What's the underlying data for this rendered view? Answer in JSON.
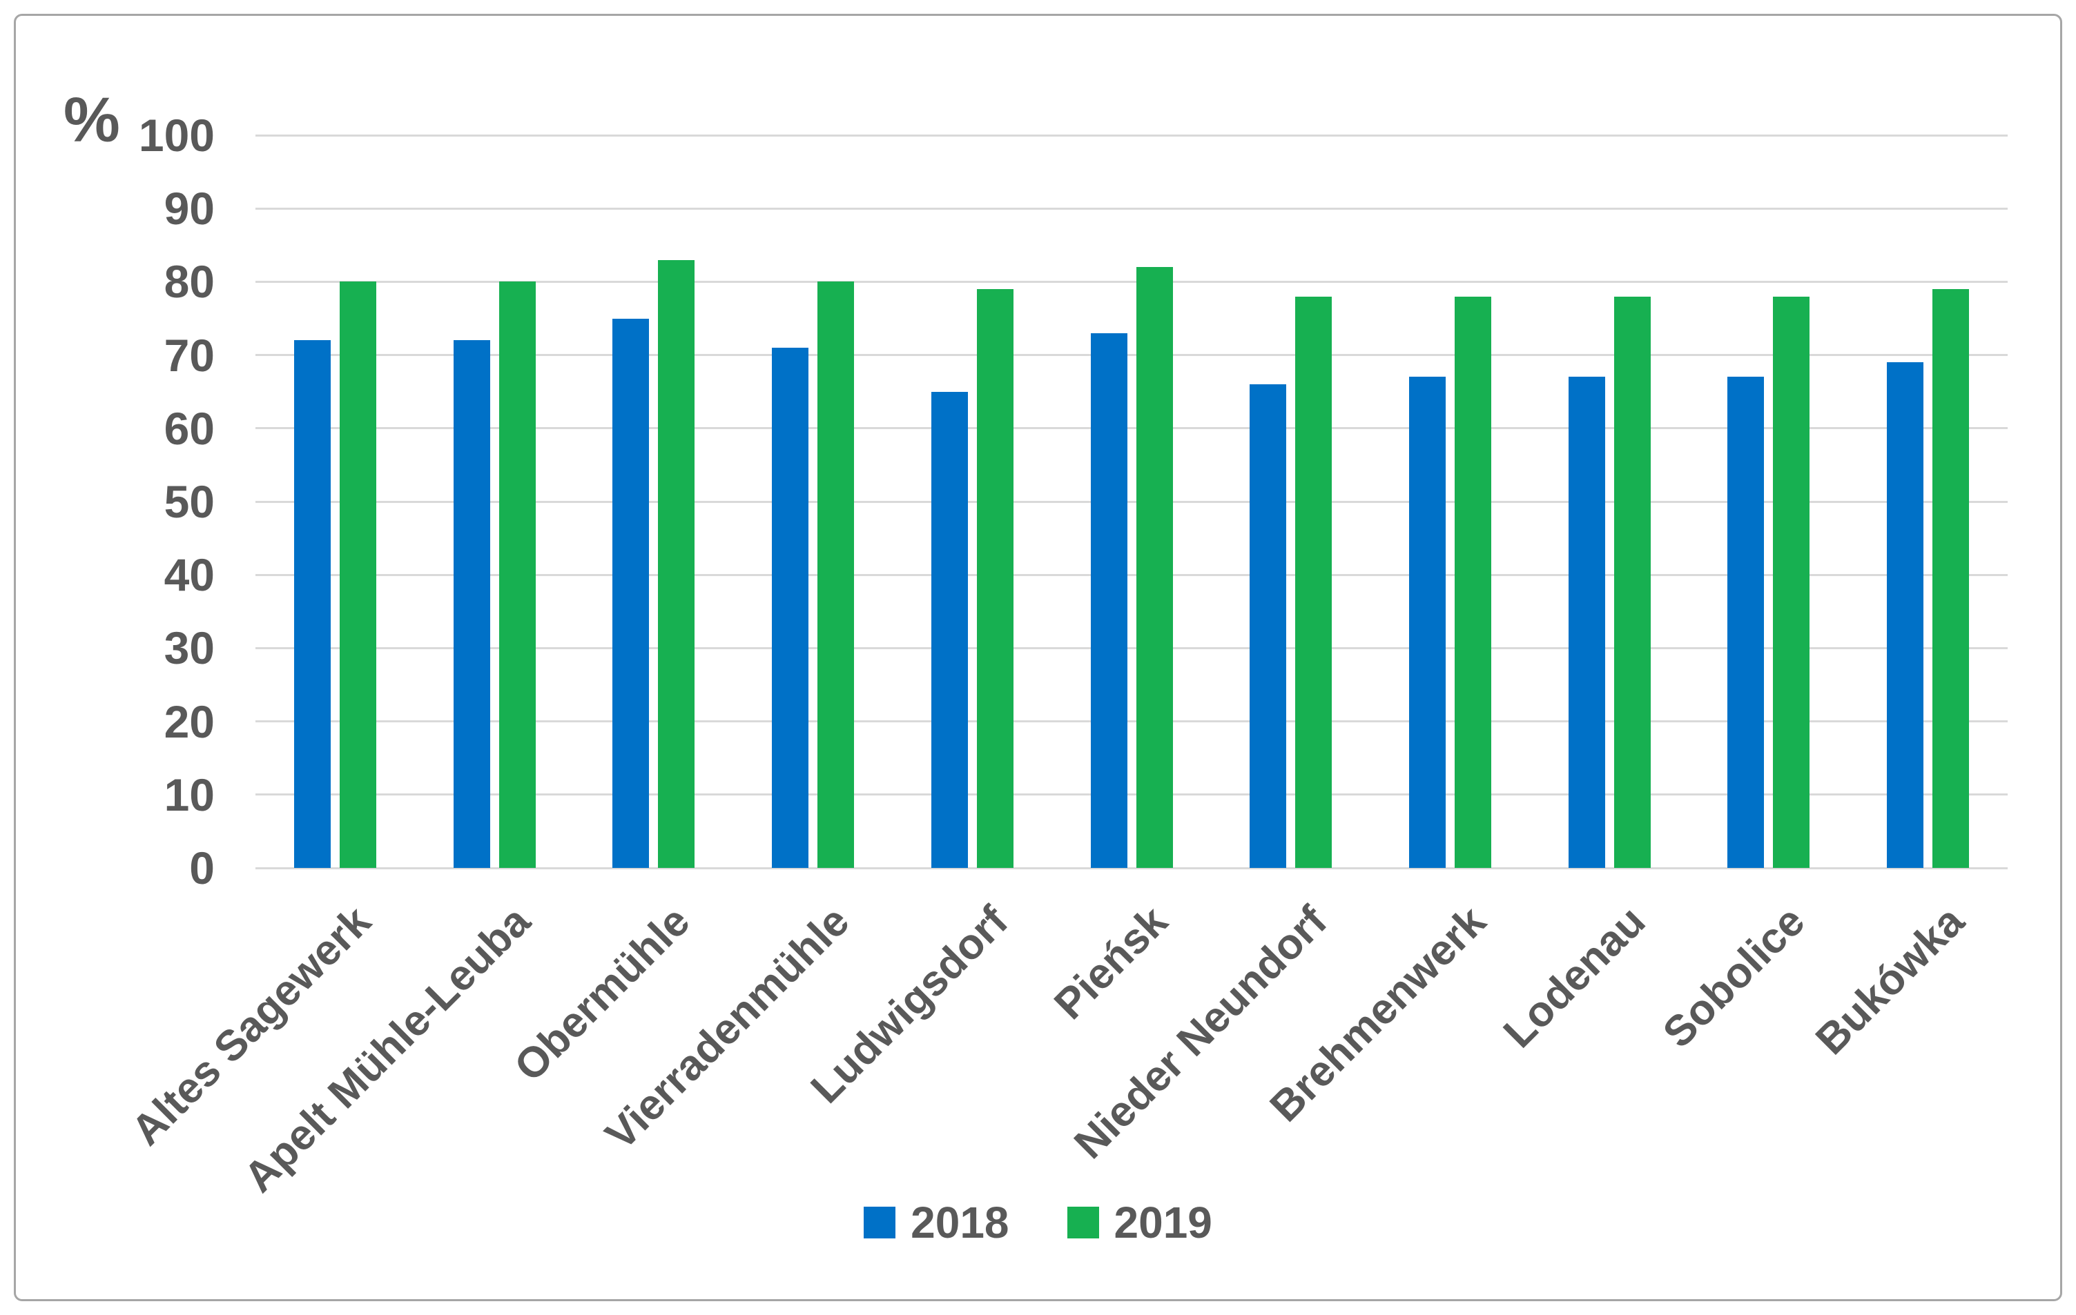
{
  "colors": {
    "text": "#595959",
    "gridline": "#d9d9d9",
    "frame": "#a6a6a6",
    "series_2018": "#0071c7",
    "series_2019": "#17b051"
  },
  "chart_data": {
    "type": "bar",
    "title": "",
    "xlabel": "",
    "ylabel": "%",
    "ylim": [
      0,
      100
    ],
    "y_ticks": [
      0,
      10,
      20,
      30,
      40,
      50,
      60,
      70,
      80,
      90,
      100
    ],
    "grid": true,
    "legend_position": "bottom",
    "categories": [
      "Altes Sagewerk",
      "Apelt Mühle-Leuba",
      "Obermühle",
      "Vierradenmühle",
      "Ludwigsdorf",
      "Pieńsk",
      "Nieder Neundorf",
      "Brehmenwerk",
      "Lodenau",
      "Sobolice",
      "Bukówka"
    ],
    "series": [
      {
        "name": "2018",
        "color": "#0071c7",
        "values": [
          72,
          72,
          75,
          71,
          65,
          73,
          66,
          67,
          67,
          67,
          69
        ]
      },
      {
        "name": "2019",
        "color": "#17b051",
        "values": [
          80,
          80,
          83,
          80,
          79,
          82,
          78,
          78,
          78,
          78,
          79
        ]
      }
    ]
  },
  "legend": {
    "items": [
      {
        "label": "2018",
        "color": "#0071c7"
      },
      {
        "label": "2019",
        "color": "#17b051"
      }
    ]
  }
}
